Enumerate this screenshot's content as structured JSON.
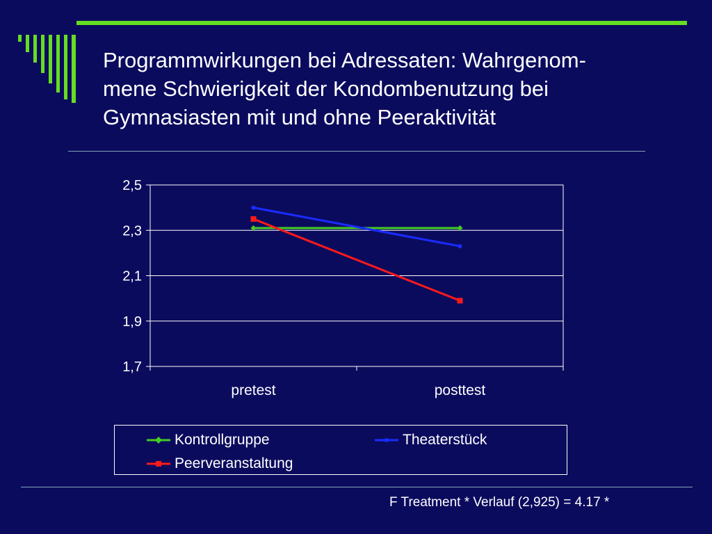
{
  "slide": {
    "title": "Programmwirkungen bei Adressaten:  Wahrgenom-\nmene Schwierigkeit der Kondombenutzung bei\nGymnasiasten mit und ohne Peeraktivität",
    "footnote": "F Treatment * Verlauf (2,925) = 4.17 *"
  },
  "colors": {
    "background": "#0b0b5e",
    "accent_green": "#66dd22",
    "grid": "#ffffff"
  },
  "chart_data": {
    "type": "line",
    "categories": [
      "pretest",
      "posttest"
    ],
    "ylim": [
      1.7,
      2.5
    ],
    "yticks": [
      1.7,
      1.9,
      2.1,
      2.3,
      2.5
    ],
    "ytick_labels": [
      "1,7",
      "1,9",
      "2,1",
      "2,3",
      "2,5"
    ],
    "grid": true,
    "legend_position": "bottom",
    "series": [
      {
        "name": "Kontrollgruppe",
        "values": [
          2.31,
          2.31
        ],
        "color": "#44cc22",
        "marker": "diamond"
      },
      {
        "name": "Theaterstück",
        "values": [
          2.4,
          2.23
        ],
        "color": "#1a2cff",
        "marker": "dot"
      },
      {
        "name": "Peerveranstaltung",
        "values": [
          2.35,
          1.99
        ],
        "color": "#ff1a1a",
        "marker": "square"
      }
    ]
  }
}
